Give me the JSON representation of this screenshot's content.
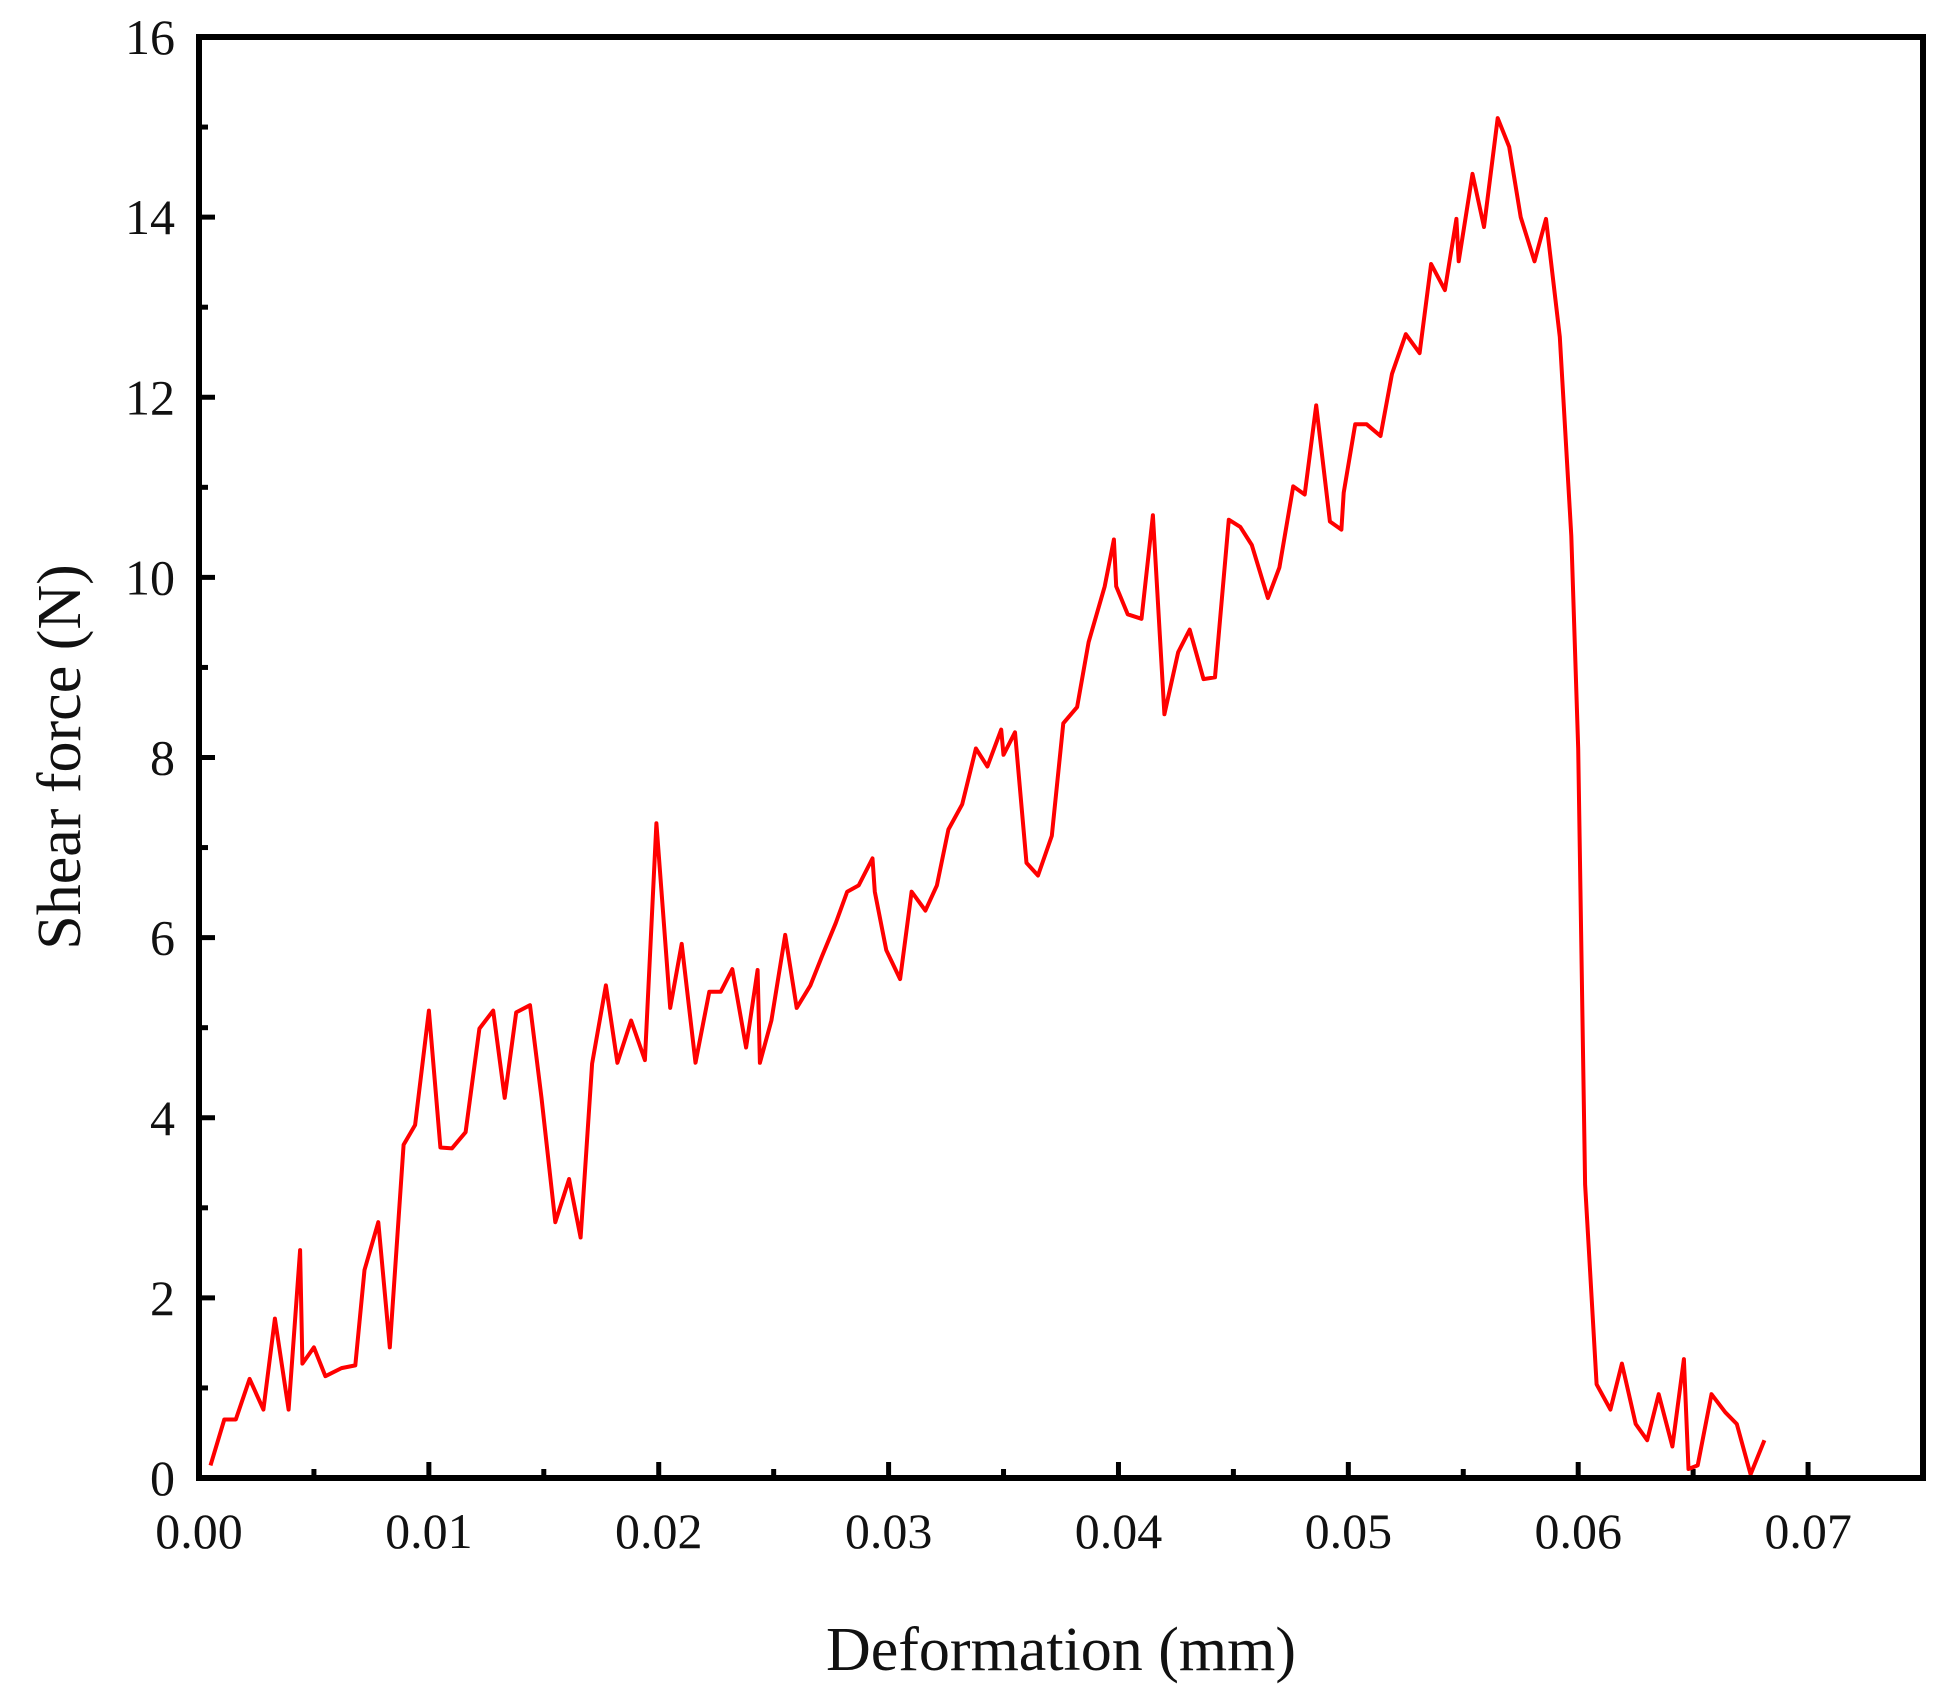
{
  "chart_data": {
    "type": "line",
    "x_label": "Deformation (mm)",
    "y_label": "Shear force (N)",
    "xlim": [
      0,
      0.075
    ],
    "ylim": [
      0,
      16
    ],
    "xticks": [
      {
        "value": 0,
        "label": "0.00"
      },
      0.01,
      0.02,
      0.03,
      0.04,
      0.05,
      0.06,
      0.07
    ],
    "yticks": [
      0,
      2,
      4,
      6,
      8,
      10,
      12,
      14,
      16
    ],
    "grid": false,
    "series": [
      {
        "color": "#ff0000",
        "x": [
          0.0005,
          0.0011,
          0.0016,
          0.0022,
          0.0028,
          0.0033,
          0.0039,
          0.0044,
          0.0045,
          0.005,
          0.0055,
          0.0062,
          0.0068,
          0.0072,
          0.0078,
          0.0083,
          0.0089,
          0.0094,
          0.01,
          0.0105,
          0.011,
          0.0116,
          0.0122,
          0.0128,
          0.0133,
          0.0138,
          0.0144,
          0.0149,
          0.0155,
          0.0161,
          0.0166,
          0.0171,
          0.0177,
          0.0182,
          0.0188,
          0.0194,
          0.0199,
          0.0205,
          0.021,
          0.0216,
          0.0222,
          0.0227,
          0.0232,
          0.0238,
          0.0243,
          0.0244,
          0.0249,
          0.0255,
          0.026,
          0.0266,
          0.0271,
          0.0277,
          0.0282,
          0.0287,
          0.0293,
          0.0294,
          0.0299,
          0.0305,
          0.031,
          0.0316,
          0.0321,
          0.0326,
          0.0332,
          0.0338,
          0.0343,
          0.0349,
          0.035,
          0.0355,
          0.036,
          0.0365,
          0.0371,
          0.0376,
          0.0382,
          0.0387,
          0.0394,
          0.0398,
          0.0399,
          0.0404,
          0.041,
          0.0415,
          0.042,
          0.0426,
          0.0431,
          0.0437,
          0.0442,
          0.0448,
          0.0453,
          0.0458,
          0.0465,
          0.047,
          0.0476,
          0.0481,
          0.0486,
          0.0492,
          0.0497,
          0.0498,
          0.0503,
          0.0508,
          0.0514,
          0.0519,
          0.0525,
          0.0531,
          0.0536,
          0.0542,
          0.0547,
          0.0548,
          0.0554,
          0.0559,
          0.0565,
          0.057,
          0.0575,
          0.0581,
          0.0586,
          0.0592,
          0.0597,
          0.06,
          0.0603,
          0.0608,
          0.0614,
          0.0619,
          0.0625,
          0.063,
          0.0635,
          0.0641,
          0.0646,
          0.0648,
          0.0652,
          0.0658,
          0.0664,
          0.0669,
          0.0675,
          0.0681
        ],
        "values": [
          0.14,
          0.65,
          0.65,
          1.1,
          0.76,
          1.77,
          0.76,
          2.53,
          1.27,
          1.45,
          1.13,
          1.22,
          1.25,
          2.31,
          2.84,
          1.45,
          3.7,
          3.92,
          5.19,
          3.67,
          3.66,
          3.84,
          4.99,
          5.19,
          4.22,
          5.17,
          5.25,
          4.22,
          2.84,
          3.32,
          2.67,
          4.6,
          5.47,
          4.61,
          5.08,
          4.64,
          7.27,
          5.22,
          5.93,
          4.61,
          5.4,
          5.4,
          5.65,
          4.78,
          5.64,
          4.61,
          5.08,
          6.03,
          5.22,
          5.47,
          5.79,
          6.16,
          6.51,
          6.58,
          6.88,
          6.51,
          5.86,
          5.54,
          6.51,
          6.3,
          6.58,
          7.2,
          7.48,
          8.1,
          7.9,
          8.31,
          8.03,
          8.28,
          6.83,
          6.69,
          7.13,
          8.38,
          8.56,
          9.28,
          9.9,
          10.42,
          9.9,
          9.59,
          9.54,
          10.69,
          8.48,
          9.17,
          9.42,
          8.87,
          8.89,
          10.64,
          10.56,
          10.36,
          9.77,
          10.11,
          11.01,
          10.92,
          11.91,
          10.62,
          10.53,
          10.94,
          11.7,
          11.7,
          11.57,
          12.26,
          12.7,
          12.49,
          13.48,
          13.19,
          13.98,
          13.51,
          14.48,
          13.89,
          15.1,
          14.78,
          14.0,
          13.51,
          13.98,
          12.67,
          10.46,
          8.1,
          3.26,
          1.04,
          0.76,
          1.27,
          0.6,
          0.42,
          0.93,
          0.35,
          1.32,
          0.1,
          0.14,
          0.93,
          0.73,
          0.6,
          0.04,
          0.42
        ]
      }
    ]
  }
}
